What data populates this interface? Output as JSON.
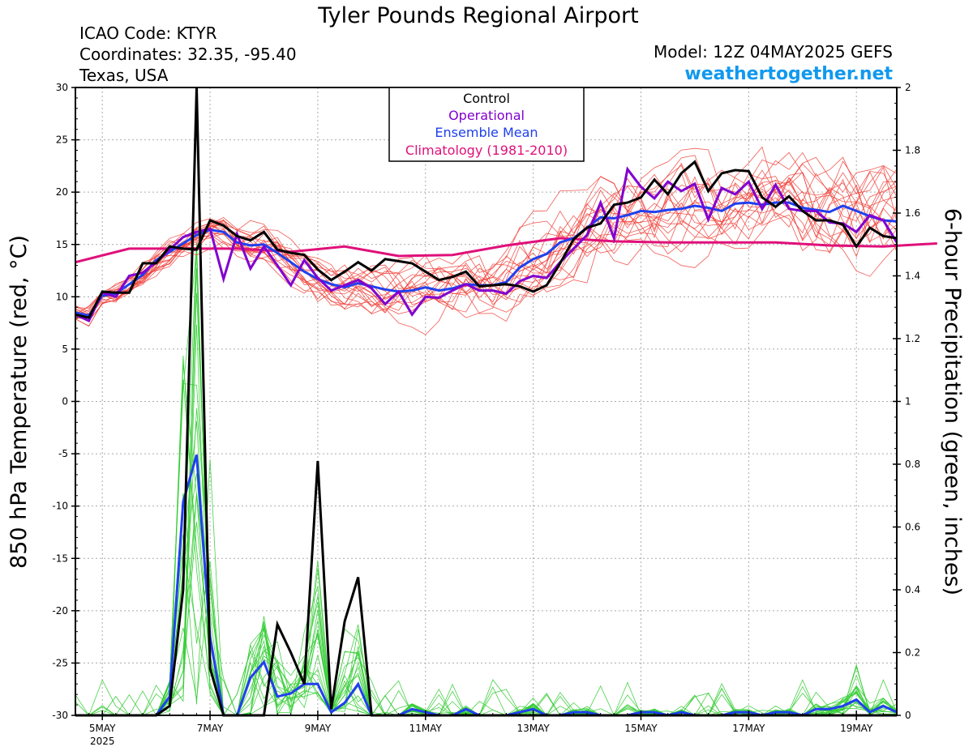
{
  "header": {
    "title": "Tyler Pounds Regional Airport",
    "icao": "ICAO Code: KTYR",
    "coordinates": "Coordinates: 32.35, -95.40",
    "region": "Texas, USA",
    "model": "Model: 12Z 04MAY2025 GEFS",
    "site": "weathertogether.net"
  },
  "colors": {
    "control": "#000000",
    "operational": "#8000d0",
    "ensemble_mean": "#2040ee",
    "climatology": "#e0107a",
    "temp_members": "#f04038",
    "precip_members": "#33cc33",
    "site": "#1199ee"
  },
  "chart_data": {
    "type": "line",
    "title": "Tyler Pounds Regional Airport",
    "left_axis": {
      "label": "850 hPa Temperature (red, °C)",
      "range": [
        -30,
        30
      ],
      "ticks": [
        30,
        25,
        20,
        15,
        10,
        5,
        0,
        -5,
        -10,
        -15,
        -20,
        -25,
        -30
      ]
    },
    "right_axis": {
      "label": "6-hour Precipitation (green, inches)",
      "range": [
        0,
        2
      ],
      "ticks": [
        "2",
        "1.8",
        "1.6",
        "1.4",
        "1.2",
        "1",
        "0.8",
        "0.6",
        "0.4",
        "0.2",
        "0"
      ]
    },
    "x_axis": {
      "start": "04MAY2025 12Z",
      "end": "20MAY2025 12Z",
      "step_hours": 6,
      "tick_labels": [
        {
          "label": "5MAY",
          "sub": "2025",
          "day": 0.5
        },
        {
          "label": "7MAY",
          "day": 2.5
        },
        {
          "label": "9MAY",
          "day": 4.5
        },
        {
          "label": "11MAY",
          "day": 6.5
        },
        {
          "label": "13MAY",
          "day": 8.5
        },
        {
          "label": "15MAY",
          "day": 10.5
        },
        {
          "label": "17MAY",
          "day": 12.5
        },
        {
          "label": "19MAY",
          "day": 14.5
        }
      ]
    },
    "grid": true,
    "legend": {
      "placement": "top-center",
      "entries": [
        "Control",
        "Operational",
        "Ensemble Mean",
        "Climatology (1981-2010)"
      ]
    },
    "climatology_850t": {
      "day": [
        0,
        1,
        2,
        3,
        4,
        5,
        6,
        7,
        8,
        9,
        10,
        11,
        12,
        13,
        14,
        15,
        16
      ],
      "values": [
        13.3,
        14.6,
        14.6,
        14.6,
        14.3,
        14.8,
        13.9,
        14.0,
        14.9,
        15.6,
        15.3,
        15.2,
        15.2,
        15.2,
        14.9,
        14.8,
        15.1
      ]
    },
    "control_850t": [
      8.3,
      8.0,
      10.5,
      10.4,
      10.4,
      13.2,
      13.2,
      14.8,
      14.6,
      14.5,
      17.3,
      16.8,
      15.8,
      15.4,
      16.2,
      14.5,
      14.2,
      14.0,
      12.6,
      11.6,
      12.4,
      13.3,
      12.5,
      13.6,
      13.4,
      13.2,
      12.4,
      11.6,
      11.9,
      12.4,
      11.0,
      11.1,
      11.2,
      11.0,
      10.5,
      11.1,
      13.2,
      15.5,
      16.6,
      17.0,
      18.8,
      19.0,
      19.5,
      21.2,
      19.8,
      21.8,
      22.9,
      20.1,
      21.8,
      22.1,
      22.0,
      19.5,
      18.6,
      19.6,
      18.2,
      17.3,
      17.3,
      16.9,
      14.8,
      16.6,
      15.8,
      15.6
    ],
    "operational_850t": [
      8.3,
      7.7,
      10.4,
      10.0,
      12.0,
      12.3,
      13.3,
      14.5,
      15.7,
      16.2,
      16.5,
      11.7,
      16.0,
      12.7,
      14.8,
      13.0,
      11.1,
      13.5,
      11.8,
      10.6,
      11.1,
      11.6,
      10.8,
      9.3,
      10.5,
      8.3,
      10.0,
      9.9,
      10.6,
      11.2,
      10.6,
      10.6,
      10.3,
      11.5,
      12.0,
      11.8,
      13.3,
      14.6,
      15.9,
      19.0,
      15.6,
      22.2,
      20.5,
      19.4,
      21.0,
      20.1,
      20.8,
      17.4,
      20.4,
      19.8,
      21.0,
      18.4,
      20.7,
      18.4,
      18.2,
      18.2,
      17.1,
      17.0,
      16.2,
      17.8,
      17.3,
      15.2
    ],
    "ensemble_mean_850t": [
      8.5,
      8.2,
      10.1,
      10.3,
      11.2,
      12.1,
      13.5,
      14.3,
      15.1,
      15.9,
      16.4,
      16.2,
      15.2,
      14.9,
      15.0,
      14.2,
      13.3,
      12.4,
      11.7,
      11.2,
      10.9,
      11.3,
      11.0,
      10.7,
      10.5,
      10.6,
      10.9,
      10.6,
      10.8,
      11.2,
      11.1,
      11.1,
      11.4,
      12.8,
      13.6,
      14.1,
      15.2,
      15.6,
      16.6,
      17.6,
      17.5,
      17.8,
      18.2,
      18.1,
      18.3,
      18.4,
      18.7,
      18.5,
      18.2,
      18.9,
      19.0,
      18.8,
      19.0,
      19.0,
      18.5,
      18.3,
      18.1,
      18.7,
      18.2,
      17.7,
      17.3,
      17.2
    ],
    "control_precip_in": [
      0,
      0,
      0,
      0,
      0,
      0,
      0,
      0.03,
      0.4,
      2.0,
      0.15,
      0,
      0,
      0,
      0,
      0.29,
      0.2,
      0.1,
      0.81,
      0.02,
      0.3,
      0.44,
      0,
      0,
      0,
      0,
      0,
      0,
      0,
      0,
      0,
      0,
      0,
      0,
      0,
      0,
      0,
      0,
      0,
      0,
      0,
      0,
      0,
      0,
      0,
      0,
      0,
      0,
      0,
      0,
      0,
      0,
      0,
      0,
      0,
      0,
      0,
      0,
      0,
      0,
      0,
      0
    ],
    "ensemble_mean_precip_in": [
      0,
      0,
      0,
      0,
      0,
      0,
      0,
      0.06,
      0.68,
      0.83,
      0.25,
      0,
      0,
      0.12,
      0.17,
      0.06,
      0.07,
      0.1,
      0.1,
      0.01,
      0.04,
      0.1,
      0,
      0,
      0,
      0.02,
      0.01,
      0,
      0,
      0.02,
      0,
      0,
      0,
      0.01,
      0.02,
      0,
      0,
      0.01,
      0.01,
      0,
      0,
      0,
      0.01,
      0.01,
      0,
      0.01,
      0,
      0,
      0,
      0.01,
      0.01,
      0,
      0.01,
      0.01,
      0,
      0.02,
      0.02,
      0.03,
      0.05,
      0.01,
      0.03,
      0.01
    ],
    "ensemble_members_850t_shown": 20,
    "ensemble_members_precip_shown": 20
  }
}
